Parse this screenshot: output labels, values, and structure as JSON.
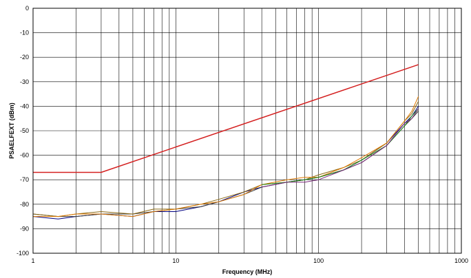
{
  "chart_data": {
    "type": "line",
    "title": "",
    "xlabel": "Frequency (MHz)",
    "ylabel": "PSAELFEXT (dBm)",
    "x_scale": "log",
    "xlim": [
      1,
      1000
    ],
    "ylim": [
      -100,
      0
    ],
    "x_ticks": [
      1,
      10,
      100,
      1000
    ],
    "x_tick_labels": [
      "1",
      "10",
      "100",
      "1000"
    ],
    "y_ticks": [
      0,
      -10,
      -20,
      -30,
      -40,
      -50,
      -60,
      -70,
      -80,
      -90,
      -100
    ],
    "y_tick_labels": [
      "0",
      "-10",
      "-20",
      "-30",
      "-40",
      "-50",
      "-60",
      "-70",
      "-80",
      "-90",
      "-100"
    ],
    "grid": true,
    "legend": "none",
    "series": [
      {
        "color": "#d42020",
        "x": [
          1,
          3,
          500
        ],
        "y": [
          -67,
          -67,
          -23
        ]
      },
      {
        "color": "#000080",
        "x": [
          1,
          1.5,
          2,
          3,
          5,
          7,
          10,
          15,
          20,
          30,
          40,
          60,
          80,
          100,
          150,
          200,
          300,
          400,
          450,
          500
        ],
        "y": [
          -85,
          -86,
          -85,
          -84,
          -85,
          -83,
          -83,
          -81,
          -79,
          -75,
          -73,
          -71,
          -70,
          -69,
          -66,
          -62,
          -55,
          -47,
          -44,
          -40
        ]
      },
      {
        "color": "#3a3a3a",
        "x": [
          1,
          1.5,
          2,
          3,
          5,
          7,
          10,
          15,
          20,
          30,
          40,
          60,
          80,
          100,
          150,
          200,
          300,
          400,
          450,
          500
        ],
        "y": [
          -84,
          -85,
          -85,
          -84,
          -84,
          -83,
          -82,
          -81,
          -79,
          -76,
          -73,
          -71,
          -70,
          -69,
          -66,
          -63,
          -56,
          -48,
          -45,
          -42
        ]
      },
      {
        "color": "#8b6914",
        "x": [
          1,
          1.5,
          2,
          3,
          5,
          7,
          10,
          15,
          20,
          30,
          40,
          60,
          80,
          100,
          150,
          200,
          300,
          400,
          450,
          500
        ],
        "y": [
          -84,
          -85,
          -84,
          -83,
          -84,
          -82,
          -82,
          -80,
          -78,
          -75,
          -72,
          -71,
          -70,
          -68,
          -65,
          -62,
          -55,
          -46,
          -43,
          -38
        ]
      },
      {
        "color": "#e07a00",
        "x": [
          1,
          1.5,
          2,
          3,
          5,
          7,
          10,
          15,
          20,
          30,
          40,
          60,
          80,
          100,
          150,
          200,
          300,
          400,
          450,
          500
        ],
        "y": [
          -85,
          -85,
          -84,
          -84,
          -85,
          -83,
          -82,
          -80,
          -79,
          -76,
          -72,
          -70,
          -69,
          -69,
          -65,
          -61,
          -55,
          -46,
          -42,
          -36
        ]
      },
      {
        "color": "#1a8a1a",
        "x": [
          40,
          60,
          80,
          100,
          150,
          200,
          300,
          400,
          450,
          500
        ],
        "y": [
          -72,
          -71,
          -70,
          -69,
          -66,
          -62,
          -56,
          -48,
          -44,
          -41
        ]
      },
      {
        "color": "#7a2a7a",
        "x": [
          40,
          60,
          80,
          100,
          150,
          200,
          300,
          400,
          450,
          500
        ],
        "y": [
          -73,
          -71,
          -71,
          -70,
          -66,
          -63,
          -56,
          -47,
          -45,
          -41
        ]
      }
    ]
  }
}
